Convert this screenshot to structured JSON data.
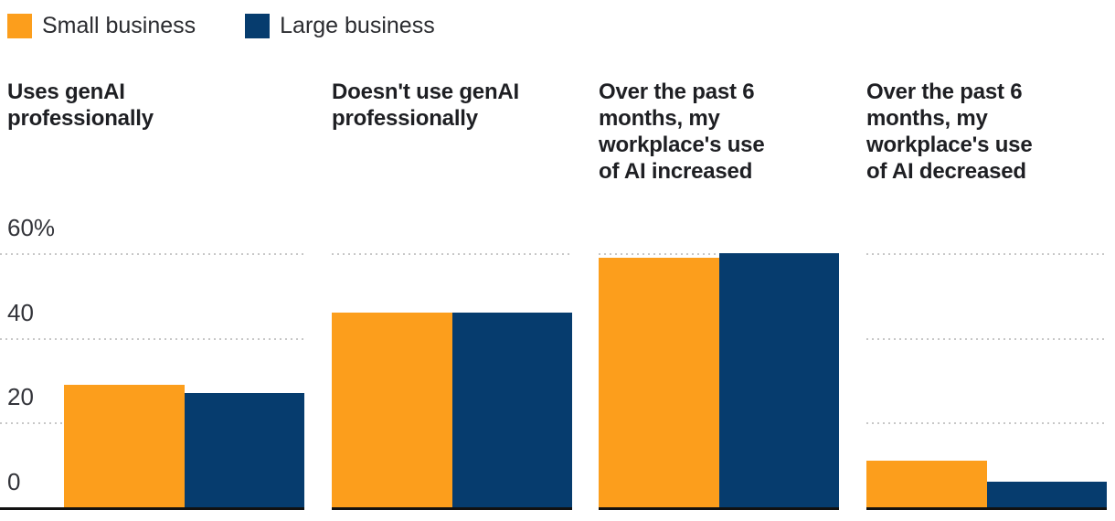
{
  "legend": {
    "items": [
      {
        "label": "Small business"
      },
      {
        "label": "Large business"
      }
    ]
  },
  "y_axis": {
    "tick_labels": [
      "60%",
      "40",
      "20",
      "0"
    ],
    "tick_values": [
      60,
      40,
      20,
      0
    ]
  },
  "chart_data": {
    "type": "bar",
    "categories": [
      "Uses genAI professionally",
      "Doesn't use genAI professionally",
      "Over the past 6 months, my workplace's use of AI increased",
      "Over the past 6 months, my workplace's use of AI decreased"
    ],
    "series": [
      {
        "name": "Small business",
        "color": "#fc9e1c",
        "values": [
          29,
          46,
          59,
          11
        ]
      },
      {
        "name": "Large business",
        "color": "#063c6e",
        "values": [
          27,
          46,
          60,
          6
        ]
      }
    ],
    "unit": "%",
    "ylim": [
      0,
      60
    ],
    "grid": "horizontal-dotted",
    "legend_position": "top-left",
    "title": "",
    "xlabel": "",
    "ylabel": ""
  },
  "panels": [
    {
      "title_lines": [
        "Uses genAI",
        "professionally"
      ]
    },
    {
      "title_lines": [
        "Doesn't use genAI",
        "professionally"
      ]
    },
    {
      "title_lines": [
        "Over the past 6",
        "months, my",
        "workplace's use",
        "of AI increased"
      ]
    },
    {
      "title_lines": [
        "Over the past 6",
        "months, my",
        "workplace's use",
        "of AI decreased"
      ]
    }
  ],
  "colors": {
    "small_business": "#fc9e1c",
    "large_business": "#063c6e",
    "gridline": "#c7c7c7",
    "axis_line": "#111111",
    "title_text": "#1e1f23",
    "tick_text": "#33343a"
  }
}
